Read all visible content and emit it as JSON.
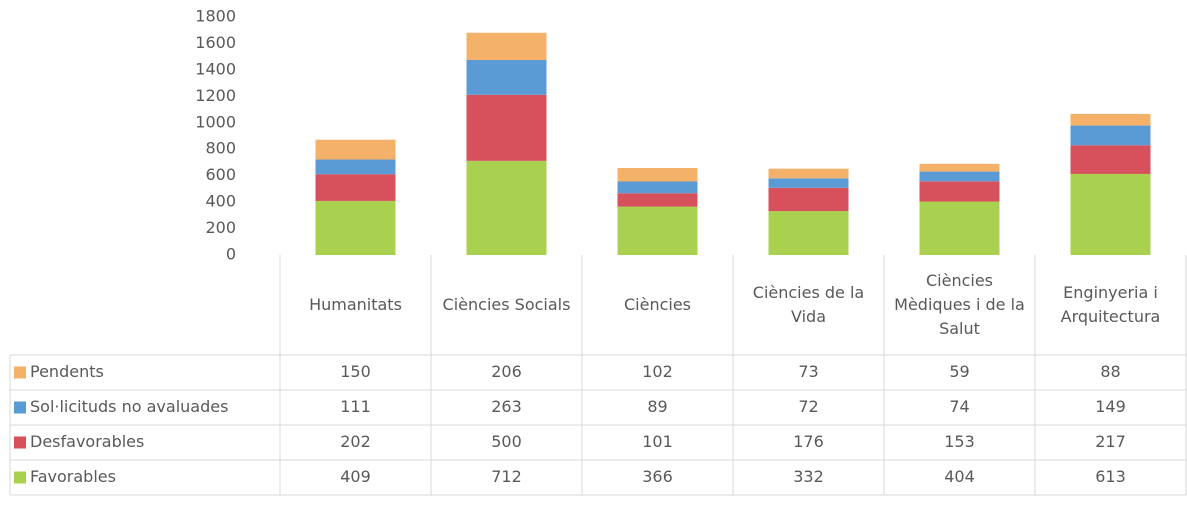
{
  "chart_data": {
    "type": "bar",
    "stacked": true,
    "categories": [
      "Humanitats",
      "Ciències Socials",
      "Ciències",
      "Ciències de la Vida",
      "Ciències Mèdiques i de la Salut",
      "Enginyeria i Arquitectura"
    ],
    "series": [
      {
        "name": "Favorables",
        "color": "#a9d04f",
        "values": [
          409,
          712,
          366,
          332,
          404,
          613
        ]
      },
      {
        "name": "Desfavorables",
        "color": "#d6515b",
        "values": [
          202,
          500,
          101,
          176,
          153,
          217
        ]
      },
      {
        "name": "Sol·licituds no avaluades",
        "color": "#5b9bd5",
        "values": [
          111,
          263,
          89,
          72,
          74,
          149
        ]
      },
      {
        "name": "Pendents",
        "color": "#f4b16a",
        "values": [
          150,
          206,
          102,
          73,
          59,
          88
        ]
      }
    ],
    "ylim": [
      0,
      1800
    ],
    "yticks": [
      0,
      200,
      400,
      600,
      800,
      1000,
      1200,
      1400,
      1600,
      1800
    ],
    "grid": false
  }
}
